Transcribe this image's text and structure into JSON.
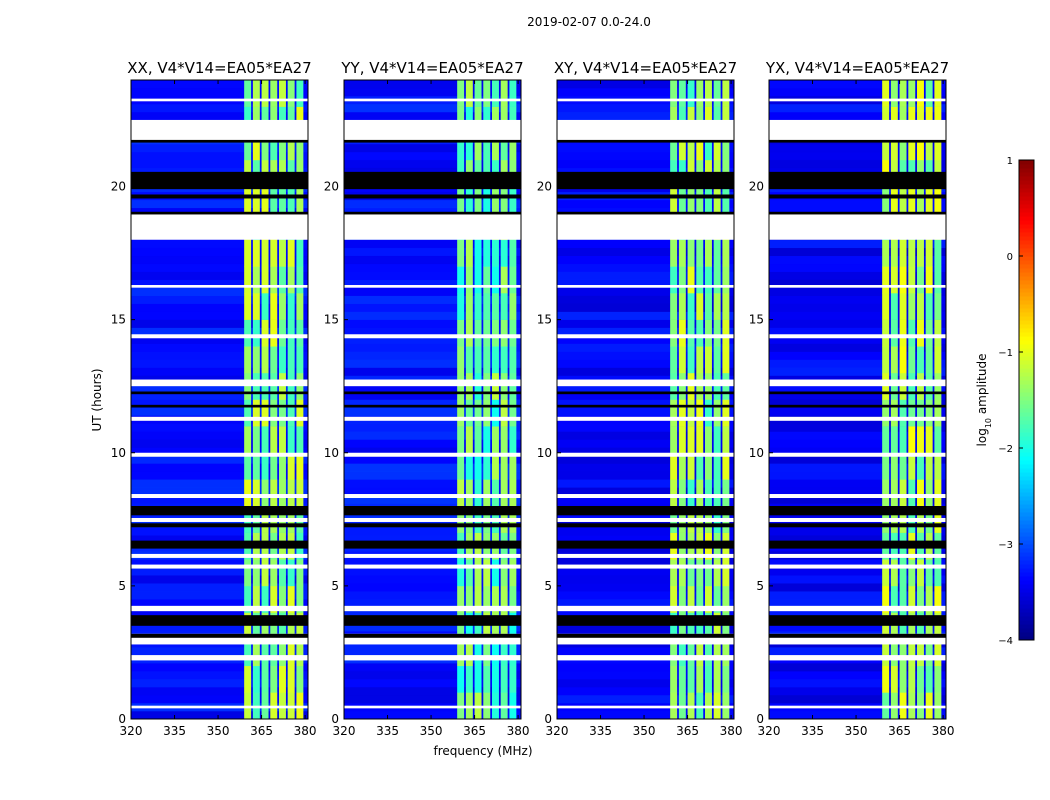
{
  "chart_data": {
    "type": "heatmap",
    "title": "2019-02-07 0.0-24.0",
    "xlabel": "frequency (MHz)",
    "ylabel": "UT (hours)",
    "xlim": [
      320,
      381
    ],
    "ylim": [
      0,
      24
    ],
    "xticks": [
      320,
      335,
      350,
      365,
      380
    ],
    "yticks": [
      0,
      5,
      10,
      15,
      20
    ],
    "panels": [
      {
        "title": "XX, V4*V14=EA05*EA27",
        "base_level": -3.3,
        "band_level": -1.6
      },
      {
        "title": "YY, V4*V14=EA05*EA27",
        "base_level": -3.3,
        "band_level": -1.8
      },
      {
        "title": "XY, V4*V14=EA05*EA27",
        "base_level": -3.4,
        "band_level": -1.6
      },
      {
        "title": "YX, V4*V14=EA05*EA27",
        "base_level": -3.4,
        "band_level": -1.5
      }
    ],
    "band_mhz": [
      359,
      380
    ],
    "colorbar": {
      "label": "log10 amplitude",
      "label_main": "log",
      "label_sub": "10",
      "label_rest": " amplitude",
      "range": [
        -4,
        1
      ],
      "ticks": [
        1,
        0,
        -1,
        -2,
        -3,
        -4
      ],
      "colormap": "jet"
    },
    "flagged_white_hours": [
      [
        21.7,
        22.5
      ],
      [
        18.0,
        19.0
      ],
      [
        12.5,
        12.75
      ],
      [
        11.2,
        11.35
      ],
      [
        9.85,
        10.0
      ],
      [
        8.3,
        8.45
      ],
      [
        7.4,
        7.55
      ],
      [
        6.05,
        6.2
      ],
      [
        5.65,
        5.8
      ],
      [
        4.05,
        4.25
      ],
      [
        2.8,
        3.2
      ],
      [
        2.2,
        2.4
      ],
      [
        0.4,
        0.5
      ],
      [
        23.2,
        23.3
      ],
      [
        16.2,
        16.3
      ],
      [
        14.3,
        14.45
      ]
    ],
    "flagged_black_hours": [
      [
        19.9,
        20.55
      ],
      [
        19.55,
        19.7
      ],
      [
        18.95,
        19.05
      ],
      [
        12.2,
        12.3
      ],
      [
        11.7,
        11.8
      ],
      [
        7.65,
        8.0
      ],
      [
        7.2,
        7.35
      ],
      [
        6.4,
        6.7
      ],
      [
        3.5,
        3.9
      ],
      [
        3.05,
        3.2
      ],
      [
        21.65,
        21.75
      ]
    ]
  }
}
